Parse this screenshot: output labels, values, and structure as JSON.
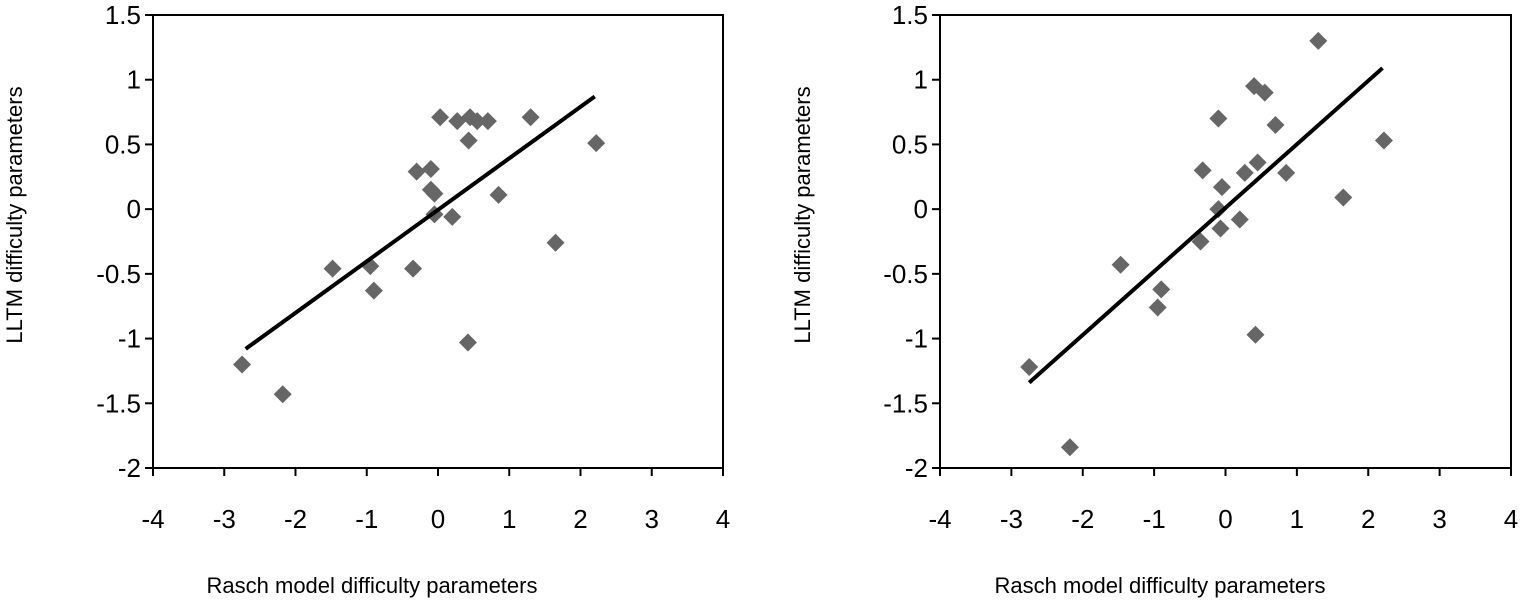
{
  "chart_data": [
    {
      "type": "scatter",
      "xlabel": "Rasch model difficulty parameters",
      "ylabel": "LLTM difficulty parameters",
      "xlim": [
        -4,
        4
      ],
      "ylim": [
        -2,
        1.5
      ],
      "xticks": [
        "-4",
        "-3",
        "-2",
        "-1",
        "0",
        "1",
        "2",
        "3",
        "4"
      ],
      "yticks": [
        "1.5",
        "1",
        "0.5",
        "0",
        "-0.5",
        "-1",
        "-1.5",
        "-2"
      ],
      "marker_color": "#666666",
      "line_color": "#000000",
      "points": [
        {
          "x": -2.75,
          "y": -1.2
        },
        {
          "x": -2.18,
          "y": -1.43
        },
        {
          "x": -1.48,
          "y": -0.46
        },
        {
          "x": -0.95,
          "y": -0.44
        },
        {
          "x": -0.9,
          "y": -0.63
        },
        {
          "x": -0.35,
          "y": -0.46
        },
        {
          "x": -0.3,
          "y": 0.29
        },
        {
          "x": -0.1,
          "y": 0.31
        },
        {
          "x": -0.1,
          "y": 0.15
        },
        {
          "x": -0.05,
          "y": 0.12
        },
        {
          "x": -0.05,
          "y": -0.04
        },
        {
          "x": 0.2,
          "y": -0.06
        },
        {
          "x": 0.03,
          "y": 0.71
        },
        {
          "x": 0.27,
          "y": 0.68
        },
        {
          "x": 0.45,
          "y": 0.71
        },
        {
          "x": 0.55,
          "y": 0.68
        },
        {
          "x": 0.7,
          "y": 0.68
        },
        {
          "x": 0.43,
          "y": 0.53
        },
        {
          "x": 0.42,
          "y": -1.03
        },
        {
          "x": 0.85,
          "y": 0.11
        },
        {
          "x": 1.3,
          "y": 0.71
        },
        {
          "x": 1.65,
          "y": -0.26
        },
        {
          "x": 2.22,
          "y": 0.51
        }
      ],
      "trendline": {
        "x": [
          -2.7,
          2.2
        ],
        "y": [
          -1.08,
          0.87
        ]
      }
    },
    {
      "type": "scatter",
      "xlabel": "Rasch model difficulty parameters",
      "ylabel": "LLTM difficulty parameters",
      "xlim": [
        -4,
        4
      ],
      "ylim": [
        -2,
        1.5
      ],
      "xticks": [
        "-4",
        "-3",
        "-2",
        "-1",
        "0",
        "1",
        "2",
        "3",
        "4"
      ],
      "yticks": [
        "1.5",
        "1",
        "0.5",
        "0",
        "-0.5",
        "-1",
        "-1.5",
        "-2"
      ],
      "marker_color": "#666666",
      "line_color": "#000000",
      "points": [
        {
          "x": -2.75,
          "y": -1.22
        },
        {
          "x": -2.18,
          "y": -1.84
        },
        {
          "x": -1.47,
          "y": -0.43
        },
        {
          "x": -0.9,
          "y": -0.62
        },
        {
          "x": -0.95,
          "y": -0.76
        },
        {
          "x": -0.35,
          "y": -0.25
        },
        {
          "x": -0.32,
          "y": 0.3
        },
        {
          "x": -0.1,
          "y": 0.7
        },
        {
          "x": -0.05,
          "y": 0.17
        },
        {
          "x": -0.1,
          "y": 0.0
        },
        {
          "x": -0.07,
          "y": -0.15
        },
        {
          "x": 0.2,
          "y": -0.08
        },
        {
          "x": 0.27,
          "y": 0.28
        },
        {
          "x": 0.45,
          "y": 0.36
        },
        {
          "x": 0.4,
          "y": 0.95
        },
        {
          "x": 0.55,
          "y": 0.9
        },
        {
          "x": 0.7,
          "y": 0.65
        },
        {
          "x": 0.42,
          "y": -0.97
        },
        {
          "x": 0.85,
          "y": 0.28
        },
        {
          "x": 1.3,
          "y": 1.3
        },
        {
          "x": 1.65,
          "y": 0.09
        },
        {
          "x": 2.22,
          "y": 0.53
        }
      ],
      "trendline": {
        "x": [
          -2.75,
          2.2
        ],
        "y": [
          -1.34,
          1.09
        ]
      }
    }
  ]
}
